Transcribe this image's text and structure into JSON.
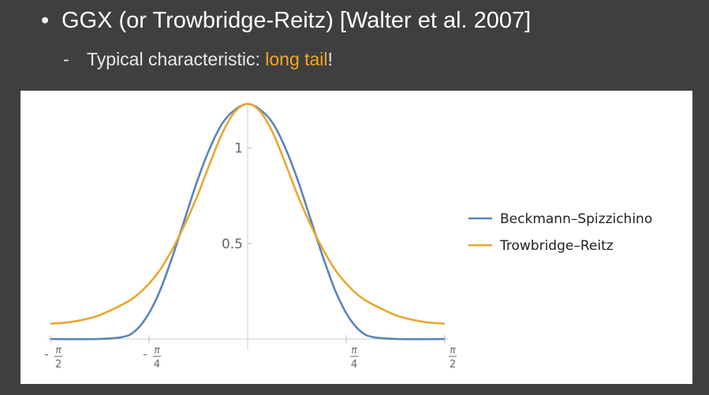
{
  "slide": {
    "bullet_text": "GGX (or Trowbridge-Reitz) [Walter et al. 2007]",
    "sub_prefix": "Typical characteristic: ",
    "sub_highlight": "long tail",
    "sub_suffix": "!"
  },
  "colors": {
    "background": "#3f3f3f",
    "accent": "#f5a623",
    "beckmann": "#5a85b8",
    "trowbridge": "#e8a830"
  },
  "chart_data": {
    "type": "line",
    "title": "",
    "xlabel": "",
    "ylabel": "",
    "xlim": [
      -1.5708,
      1.5708
    ],
    "ylim": [
      0,
      1.25
    ],
    "grid": false,
    "legend_position": "right",
    "x_ticks": [
      {
        "value": -1.5708,
        "sign": "-",
        "num": "π",
        "den": "2"
      },
      {
        "value": -0.7854,
        "sign": "-",
        "num": "π",
        "den": "4"
      },
      {
        "value": 0.7854,
        "sign": "",
        "num": "π",
        "den": "4"
      },
      {
        "value": 1.5708,
        "sign": "",
        "num": "π",
        "den": "2"
      }
    ],
    "y_ticks": [
      {
        "value": 0.5,
        "label": "0.5"
      },
      {
        "value": 1,
        "label": "1"
      }
    ],
    "series": [
      {
        "name": "Beckmann–Spizzichino",
        "color": "#5a85b8",
        "x": [
          -1.5708,
          -1.2,
          -1.0,
          -0.9,
          -0.8,
          -0.7,
          -0.6,
          -0.5,
          -0.4,
          -0.3,
          -0.2,
          -0.1,
          0,
          0.1,
          0.2,
          0.3,
          0.4,
          0.5,
          0.6,
          0.7,
          0.8,
          0.9,
          1.0,
          1.2,
          1.5708
        ],
        "y": [
          0.0,
          0.0,
          0.01,
          0.04,
          0.12,
          0.25,
          0.43,
          0.63,
          0.83,
          1.0,
          1.13,
          1.2,
          1.23,
          1.2,
          1.13,
          1.0,
          0.83,
          0.63,
          0.43,
          0.25,
          0.12,
          0.04,
          0.01,
          0.0,
          0.0
        ]
      },
      {
        "name": "Trowbridge–Reitz",
        "color": "#e8a830",
        "x": [
          -1.5708,
          -1.4,
          -1.2,
          -1.0,
          -0.9,
          -0.8,
          -0.7,
          -0.6,
          -0.5,
          -0.4,
          -0.3,
          -0.2,
          -0.1,
          0,
          0.1,
          0.2,
          0.3,
          0.4,
          0.5,
          0.6,
          0.7,
          0.8,
          0.9,
          1.0,
          1.2,
          1.4,
          1.5708
        ],
        "y": [
          0.08,
          0.09,
          0.12,
          0.18,
          0.22,
          0.28,
          0.36,
          0.47,
          0.6,
          0.75,
          0.92,
          1.08,
          1.19,
          1.23,
          1.19,
          1.08,
          0.92,
          0.75,
          0.6,
          0.47,
          0.36,
          0.28,
          0.22,
          0.18,
          0.12,
          0.09,
          0.08
        ]
      }
    ]
  }
}
